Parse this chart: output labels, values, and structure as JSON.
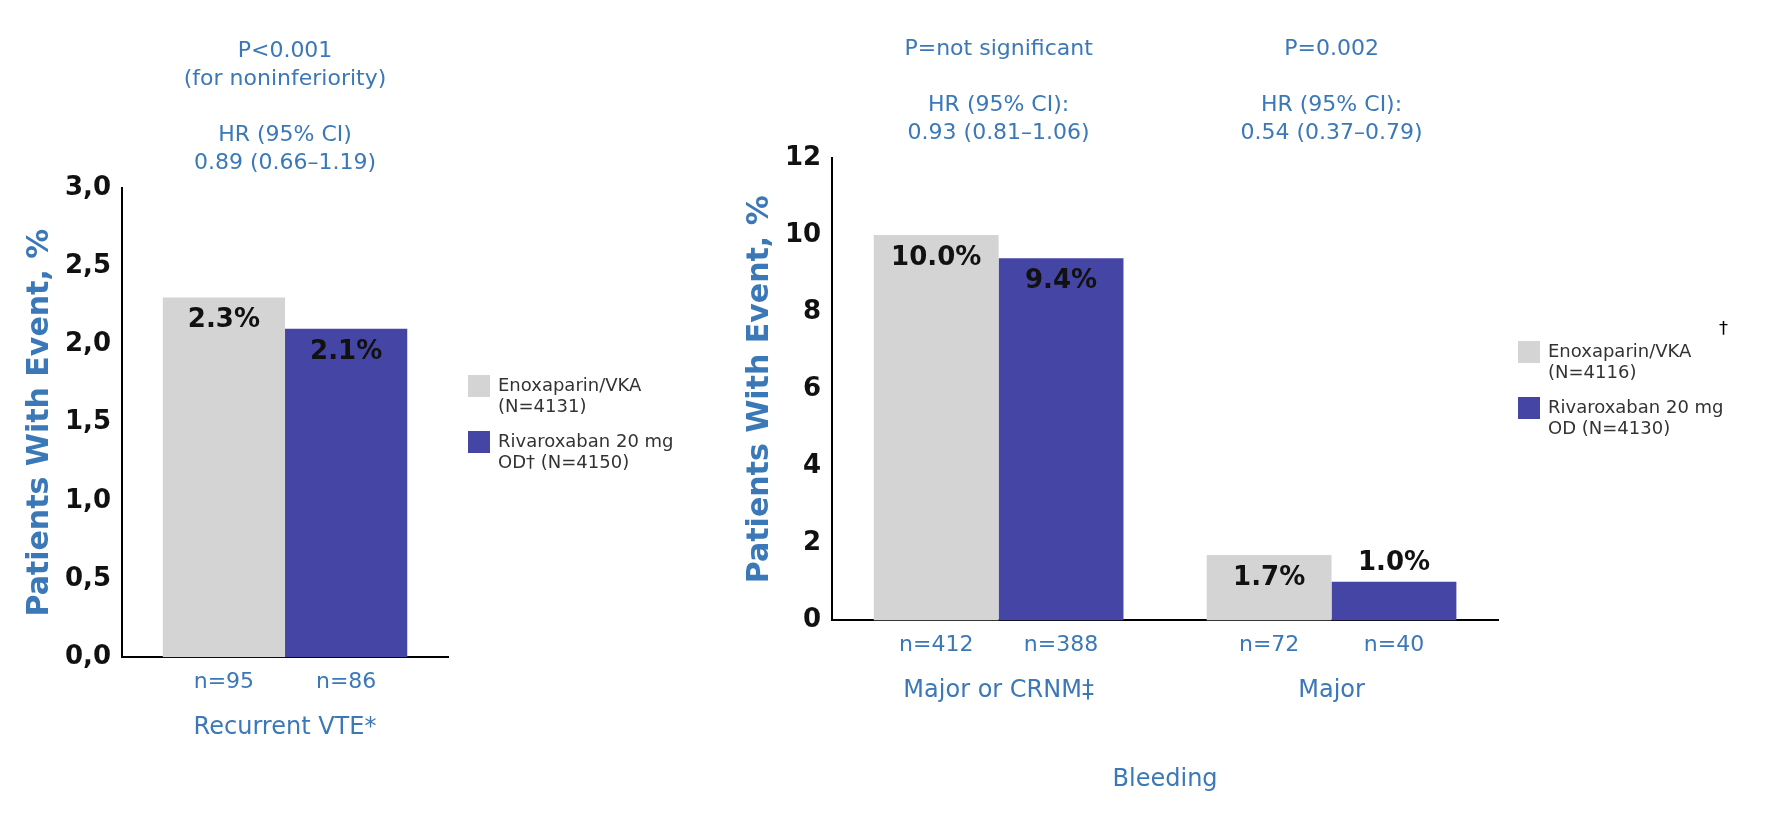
{
  "chart_data": [
    {
      "type": "bar",
      "ylabel": "Patients With Event, %",
      "categories": [
        "Recurrent VTE*"
      ],
      "series": [
        {
          "name": "Enoxaparin/VKA (N=4131)",
          "color": "#d4d4d4",
          "values": [
            2.3
          ],
          "value_labels": [
            "2.3%"
          ]
        },
        {
          "name": "Rivaroxaban 20 mg OD† (N=4150)",
          "color": "#4545a6",
          "values": [
            2.1
          ],
          "value_labels": [
            "2.1%"
          ]
        }
      ],
      "ylim": [
        0,
        3
      ],
      "yticks": [
        {
          "value": 0,
          "label": "0,0"
        },
        {
          "value": 0.5,
          "label": "0,5"
        },
        {
          "value": 1,
          "label": "1,0"
        },
        {
          "value": 1.5,
          "label": "1,5"
        },
        {
          "value": 2,
          "label": "2,0"
        },
        {
          "value": 2.5,
          "label": "2,5"
        },
        {
          "value": 3,
          "label": "3,0"
        }
      ],
      "grid": false,
      "legend": "right",
      "annotations": [
        "P<0.001\n(for noninferiority)",
        "HR (95% CI)\n0.89 (0.66–1.19)",
        "n=95",
        "n=86"
      ]
    },
    {
      "type": "bar",
      "ylabel": "Patients With Event, %",
      "xlabel": "Bleeding",
      "categories": [
        "Major or CRNM‡",
        "Major"
      ],
      "series": [
        {
          "name": "Enoxaparin/VKA (N=4116)",
          "color": "#d4d4d4",
          "values": [
            10.0,
            1.7
          ],
          "value_labels": [
            "10.0%",
            "1.7%"
          ]
        },
        {
          "name": "Rivaroxaban 20 mg OD (N=4130)",
          "color": "#4545a6",
          "values": [
            9.4,
            1.0
          ],
          "value_labels": [
            "9.4%",
            "1.0%"
          ]
        }
      ],
      "ylim": [
        0,
        12
      ],
      "yticks": [
        0,
        2,
        4,
        6,
        8,
        10,
        12
      ],
      "grid": false,
      "legend": "right",
      "annotations": [
        "P=not significant",
        "HR (95% CI):\n0.93 (0.81–1.06)",
        "n=412",
        "n=388",
        "P=0.002",
        "HR (95% CI):\n0.54 (0.37–0.79)",
        "n=72",
        "n=40",
        "†"
      ]
    }
  ]
}
